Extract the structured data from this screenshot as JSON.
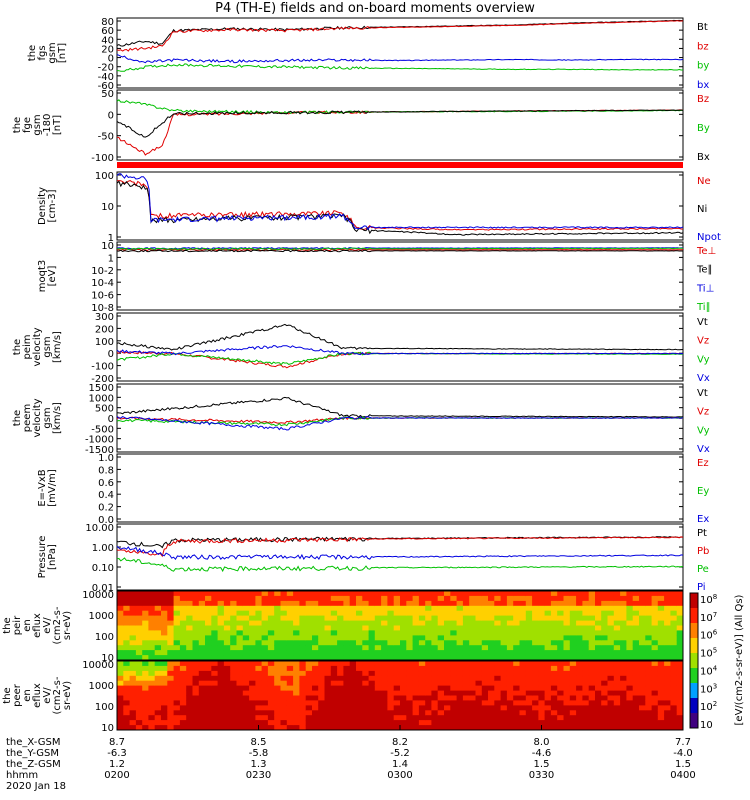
{
  "title": "P4 (TH-E) fields and on-board moments overview",
  "date": "2020 Jan 18",
  "chart_data": [
    {
      "id": "fgs_gsm",
      "type": "line",
      "ylabel": [
        "the",
        "fgs",
        "gsm",
        "[nT]"
      ],
      "yticks": [
        "80",
        "60",
        "40",
        "20",
        "0",
        "-20",
        "-40",
        "-60"
      ],
      "ylim": [
        -65,
        85
      ],
      "legend": [
        {
          "label": "Bt",
          "color": "#000000"
        },
        {
          "label": "bz",
          "color": "#e00000"
        },
        {
          "label": "by",
          "color": "#00c000"
        },
        {
          "label": "bx",
          "color": "#0000e0"
        }
      ],
      "series": [
        {
          "name": "Bt",
          "color": "#000000",
          "points": [
            [
              0,
              25
            ],
            [
              0.05,
              35
            ],
            [
              0.08,
              30
            ],
            [
              0.1,
              58
            ],
            [
              0.2,
              62
            ],
            [
              0.3,
              60
            ],
            [
              0.4,
              64
            ],
            [
              0.5,
              66
            ],
            [
              0.6,
              68
            ],
            [
              0.7,
              70
            ],
            [
              0.8,
              74
            ],
            [
              0.9,
              77
            ],
            [
              1,
              80
            ]
          ]
        },
        {
          "name": "bz",
          "color": "#e00000",
          "points": [
            [
              0,
              15
            ],
            [
              0.05,
              20
            ],
            [
              0.08,
              25
            ],
            [
              0.1,
              56
            ],
            [
              0.2,
              60
            ],
            [
              0.3,
              58
            ],
            [
              0.4,
              63
            ],
            [
              0.5,
              65
            ],
            [
              0.6,
              67
            ],
            [
              0.7,
              69
            ],
            [
              0.8,
              73
            ],
            [
              0.9,
              76
            ],
            [
              1,
              79
            ]
          ]
        },
        {
          "name": "by",
          "color": "#00c000",
          "points": [
            [
              0,
              -30
            ],
            [
              0.05,
              -20
            ],
            [
              0.1,
              -15
            ],
            [
              0.2,
              -18
            ],
            [
              0.3,
              -20
            ],
            [
              0.4,
              -22
            ],
            [
              0.5,
              -23
            ],
            [
              0.6,
              -24
            ],
            [
              0.7,
              -25
            ],
            [
              0.8,
              -25
            ],
            [
              0.9,
              -26
            ],
            [
              1,
              -26
            ]
          ]
        },
        {
          "name": "bx",
          "color": "#0000e0",
          "points": [
            [
              0,
              5
            ],
            [
              0.05,
              -10
            ],
            [
              0.1,
              -5
            ],
            [
              0.2,
              -8
            ],
            [
              0.3,
              -6
            ],
            [
              0.4,
              -5
            ],
            [
              0.5,
              -6
            ],
            [
              0.6,
              -5
            ],
            [
              0.7,
              -4
            ],
            [
              0.8,
              -5
            ],
            [
              0.9,
              -4
            ],
            [
              1,
              -4
            ]
          ]
        }
      ]
    },
    {
      "id": "fge_gsm",
      "type": "line",
      "ylabel": [
        "the",
        "fge",
        "gsm",
        "-180",
        "[nT]"
      ],
      "yticks": [
        "50",
        "0",
        "-50",
        "-100"
      ],
      "ylim": [
        -115,
        55
      ],
      "legend": [
        {
          "label": "Bz",
          "color": "#e00000"
        },
        {
          "label": "By",
          "color": "#00c000"
        },
        {
          "label": "Bx",
          "color": "#000000"
        }
      ],
      "series": [
        {
          "name": "Bz",
          "color": "#e00000",
          "points": [
            [
              0,
              -60
            ],
            [
              0.05,
              -100
            ],
            [
              0.08,
              -80
            ],
            [
              0.1,
              -5
            ],
            [
              0.3,
              0
            ],
            [
              0.5,
              2
            ],
            [
              0.7,
              4
            ],
            [
              1,
              6
            ]
          ]
        },
        {
          "name": "By",
          "color": "#00c000",
          "points": [
            [
              0,
              30
            ],
            [
              0.05,
              20
            ],
            [
              0.1,
              5
            ],
            [
              0.3,
              0
            ],
            [
              0.5,
              2
            ],
            [
              0.7,
              3
            ],
            [
              1,
              5
            ]
          ]
        },
        {
          "name": "Bx",
          "color": "#000000",
          "points": [
            [
              0,
              -20
            ],
            [
              0.05,
              -60
            ],
            [
              0.1,
              -2
            ],
            [
              0.3,
              0
            ],
            [
              0.5,
              2
            ],
            [
              0.7,
              4
            ],
            [
              1,
              6
            ]
          ]
        }
      ]
    },
    {
      "id": "density",
      "type": "line",
      "ylabel": [
        "Density",
        "[cm-3]"
      ],
      "yticks": [
        "100",
        "10",
        "1"
      ],
      "ylim": [
        0.3,
        200
      ],
      "log": true,
      "legend": [
        {
          "label": "Ne",
          "color": "#e00000"
        },
        {
          "label": "Ni",
          "color": "#000000"
        },
        {
          "label": "Npot",
          "color": "#0000e0"
        }
      ],
      "series": [
        {
          "name": "Ne",
          "color": "#e00000",
          "points": [
            [
              0,
              80
            ],
            [
              0.05,
              60
            ],
            [
              0.06,
              3
            ],
            [
              0.4,
              4
            ],
            [
              0.42,
              1
            ],
            [
              0.6,
              0.8
            ],
            [
              1,
              0.9
            ]
          ]
        },
        {
          "name": "Ni",
          "color": "#000000",
          "points": [
            [
              0,
              70
            ],
            [
              0.05,
              50
            ],
            [
              0.06,
              2
            ],
            [
              0.4,
              3
            ],
            [
              0.42,
              0.8
            ],
            [
              0.6,
              0.5
            ],
            [
              1,
              0.6
            ]
          ]
        },
        {
          "name": "Npot",
          "color": "#0000e0",
          "points": [
            [
              0,
              150
            ],
            [
              0.05,
              100
            ],
            [
              0.06,
              2
            ],
            [
              0.4,
              3
            ],
            [
              0.42,
              1
            ],
            [
              0.6,
              1
            ],
            [
              1,
              1
            ]
          ]
        }
      ]
    },
    {
      "id": "moqt3",
      "type": "line",
      "ylabel": [
        "moqt3",
        "[eV]"
      ],
      "yticks": [
        "10",
        "1",
        "10-2",
        "10-4",
        "10-6",
        "10-8"
      ],
      "ylim": [
        1e-09,
        50
      ],
      "log": true,
      "legend": [
        {
          "label": "Te⊥",
          "color": "#e00000"
        },
        {
          "label": "Te∥",
          "color": "#000000"
        },
        {
          "label": "Ti⊥",
          "color": "#0000e0"
        },
        {
          "label": "Ti∥",
          "color": "#00c000"
        }
      ],
      "series": [
        {
          "name": "Te⊥",
          "color": "#e00000",
          "points": [
            [
              0,
              3
            ],
            [
              1,
              3
            ]
          ]
        },
        {
          "name": "Te∥",
          "color": "#000000",
          "points": [
            [
              0,
              2
            ],
            [
              1,
              2
            ]
          ]
        },
        {
          "name": "Ti⊥",
          "color": "#0000e0",
          "points": [
            [
              0,
              5
            ],
            [
              1,
              6
            ]
          ]
        },
        {
          "name": "Ti∥",
          "color": "#00c000",
          "points": [
            [
              0,
              4
            ],
            [
              1,
              5
            ]
          ]
        }
      ]
    },
    {
      "id": "peim_velocity",
      "type": "line",
      "ylabel": [
        "the",
        "peim",
        "velocity",
        "gsm",
        "[km/s]"
      ],
      "yticks": [
        "300",
        "200",
        "100",
        "0",
        "-100",
        "-200"
      ],
      "ylim": [
        -210,
        310
      ],
      "legend": [
        {
          "label": "Vt",
          "color": "#000000"
        },
        {
          "label": "Vz",
          "color": "#e00000"
        },
        {
          "label": "Vy",
          "color": "#00c000"
        },
        {
          "label": "Vx",
          "color": "#0000e0"
        }
      ],
      "series": [
        {
          "name": "Vt",
          "color": "#000000",
          "points": [
            [
              0,
              80
            ],
            [
              0.1,
              30
            ],
            [
              0.3,
              220
            ],
            [
              0.4,
              40
            ],
            [
              1,
              30
            ]
          ]
        },
        {
          "name": "Vz",
          "color": "#e00000",
          "points": [
            [
              0,
              10
            ],
            [
              0.1,
              0
            ],
            [
              0.3,
              -100
            ],
            [
              0.4,
              0
            ],
            [
              1,
              0
            ]
          ]
        },
        {
          "name": "Vy",
          "color": "#00c000",
          "points": [
            [
              0,
              -50
            ],
            [
              0.1,
              0
            ],
            [
              0.3,
              -80
            ],
            [
              0.4,
              0
            ],
            [
              1,
              -5
            ]
          ]
        },
        {
          "name": "Vx",
          "color": "#0000e0",
          "points": [
            [
              0,
              20
            ],
            [
              0.1,
              0
            ],
            [
              0.3,
              60
            ],
            [
              0.4,
              0
            ],
            [
              1,
              0
            ]
          ]
        }
      ]
    },
    {
      "id": "peem_velocity",
      "type": "line",
      "ylabel": [
        "the",
        "peem",
        "velocity",
        "gsm",
        "[km/s]"
      ],
      "yticks": [
        "1500",
        "1000",
        "500",
        "0",
        "-500",
        "-1000",
        "-1500"
      ],
      "ylim": [
        -1550,
        1550
      ],
      "legend": [
        {
          "label": "Vt",
          "color": "#000000"
        },
        {
          "label": "Vz",
          "color": "#e00000"
        },
        {
          "label": "Vy",
          "color": "#00c000"
        },
        {
          "label": "Vx",
          "color": "#0000e0"
        }
      ],
      "series": [
        {
          "name": "Vt",
          "color": "#000000",
          "points": [
            [
              0,
              200
            ],
            [
              0.3,
              900
            ],
            [
              0.4,
              100
            ],
            [
              1,
              50
            ]
          ]
        },
        {
          "name": "Vz",
          "color": "#e00000",
          "points": [
            [
              0,
              0
            ],
            [
              0.3,
              -200
            ],
            [
              0.4,
              0
            ],
            [
              1,
              0
            ]
          ]
        },
        {
          "name": "Vy",
          "color": "#00c000",
          "points": [
            [
              0,
              -100
            ],
            [
              0.3,
              -300
            ],
            [
              0.4,
              0
            ],
            [
              1,
              0
            ]
          ]
        },
        {
          "name": "Vx",
          "color": "#0000e0",
          "points": [
            [
              0,
              50
            ],
            [
              0.3,
              -500
            ],
            [
              0.4,
              0
            ],
            [
              1,
              0
            ]
          ]
        }
      ]
    },
    {
      "id": "efield",
      "type": "line",
      "ylabel": [
        "E=-VxB",
        "[mV/m]"
      ],
      "yticks": [
        "1.0",
        "0.8",
        "0.6",
        "0.4",
        "0.2",
        "0.0"
      ],
      "ylim": [
        0,
        1
      ],
      "legend": [
        {
          "label": "Ez",
          "color": "#e00000"
        },
        {
          "label": "Ey",
          "color": "#00c000"
        },
        {
          "label": "Ex",
          "color": "#0000e0"
        }
      ],
      "series": []
    },
    {
      "id": "pressure",
      "type": "line",
      "ylabel": [
        "Pressure",
        "[nPa]"
      ],
      "yticks": [
        "10.00",
        "1.00",
        "0.10",
        "0.01"
      ],
      "ylim": [
        0.005,
        12
      ],
      "log": true,
      "legend": [
        {
          "label": "Pt",
          "color": "#000000"
        },
        {
          "label": "Pb",
          "color": "#e00000"
        },
        {
          "label": "Pe",
          "color": "#00c000"
        },
        {
          "label": "Pi",
          "color": "#0000e0"
        }
      ],
      "series": [
        {
          "name": "Pt",
          "color": "#000000",
          "points": [
            [
              0,
              1.5
            ],
            [
              0.08,
              0.8
            ],
            [
              0.1,
              1.8
            ],
            [
              0.5,
              2.2
            ],
            [
              1,
              2.6
            ]
          ]
        },
        {
          "name": "Pb",
          "color": "#e00000",
          "points": [
            [
              0,
              0.5
            ],
            [
              0.08,
              0.3
            ],
            [
              0.1,
              1.6
            ],
            [
              0.5,
              2.1
            ],
            [
              1,
              2.5
            ]
          ]
        },
        {
          "name": "Pe",
          "color": "#00c000",
          "points": [
            [
              0,
              0.2
            ],
            [
              0.1,
              0.06
            ],
            [
              0.5,
              0.07
            ],
            [
              1,
              0.08
            ]
          ]
        },
        {
          "name": "Pi",
          "color": "#0000e0",
          "points": [
            [
              0,
              0.8
            ],
            [
              0.1,
              0.25
            ],
            [
              0.5,
              0.25
            ],
            [
              1,
              0.3
            ]
          ]
        }
      ]
    },
    {
      "id": "peir_en_eflux",
      "type": "heatmap",
      "ylabel": [
        "the",
        "peir",
        "en",
        "eflux",
        "eV/",
        "(cm2-s-",
        "sr-eV)"
      ],
      "yticks": [
        "10000",
        "1000",
        "100",
        "10"
      ]
    },
    {
      "id": "peer_en_eflux",
      "type": "heatmap",
      "ylabel": [
        "the",
        "peer",
        "en",
        "eflux",
        "eV/",
        "(cm2-s-",
        "sr-eV)"
      ],
      "yticks": [
        "10000",
        "1000",
        "100",
        "10"
      ]
    }
  ],
  "colorbar": {
    "label": "[eV/(cm2-s-sr-eV)] (All Qs)",
    "ticks": [
      "10",
      "10",
      "10",
      "10",
      "10",
      "10",
      "10",
      "10"
    ],
    "exponents": [
      "8",
      "7",
      "6",
      "5",
      "4",
      "3",
      "2",
      ""
    ]
  },
  "xaxis": {
    "rows": [
      {
        "label": "the_X-GSM",
        "values": [
          "8.7",
          "8.5",
          "8.2",
          "8.0",
          "7.7"
        ]
      },
      {
        "label": "the_Y-GSM",
        "values": [
          "-6.3",
          "-5.8",
          "-5.2",
          "-4.6",
          "-4.0"
        ]
      },
      {
        "label": "the_Z-GSM",
        "values": [
          "1.2",
          "1.3",
          "1.4",
          "1.5",
          "1.5"
        ]
      },
      {
        "label": "hhmm",
        "values": [
          "0200",
          "0230",
          "0300",
          "0330",
          "0400"
        ]
      }
    ]
  }
}
